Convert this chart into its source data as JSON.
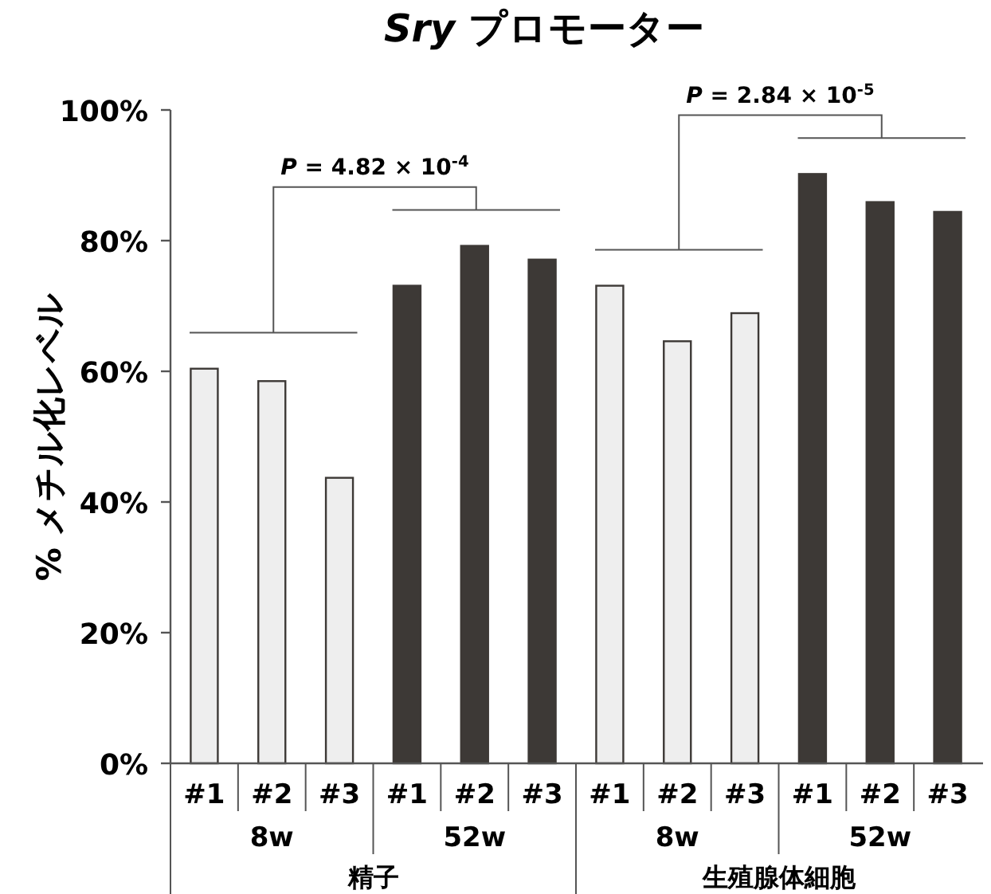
{
  "chart_data": {
    "type": "bar",
    "title": "*Sry* プロモーター",
    "ylabel": "% メチル化レベル",
    "categories": [
      "#1",
      "#2",
      "#3",
      "#1",
      "#2",
      "#3",
      "#1",
      "#2",
      "#3",
      "#1",
      "#2",
      "#3"
    ],
    "values": [
      60.4,
      58.5,
      43.7,
      73.1,
      79.2,
      77.1,
      73.1,
      64.6,
      68.9,
      90.2,
      85.9,
      84.4
    ],
    "colors": [
      "#eeeeee",
      "#eeeeee",
      "#eeeeee",
      "#3d3936",
      "#3d3936",
      "#3d3936",
      "#eeeeee",
      "#eeeeee",
      "#eeeeee",
      "#3d3936",
      "#3d3936",
      "#3d3936"
    ],
    "ylim": [
      0,
      100
    ],
    "yticks": [
      {
        "value": 0,
        "label": "0%"
      },
      {
        "value": 20,
        "label": "20%"
      },
      {
        "value": 40,
        "label": "40%"
      },
      {
        "value": 60,
        "label": "60%"
      },
      {
        "value": 80,
        "label": "80%"
      },
      {
        "value": 100,
        "label": "100%"
      }
    ],
    "annotations": [
      "*P* = 4.82 × 10$^{-4}$",
      "*P* = 2.84 × 10$^{-5}$",
      "8w",
      "52w",
      "8w",
      "52w",
      "精子",
      "生殖腺体細胞"
    ],
    "grid": false
  }
}
